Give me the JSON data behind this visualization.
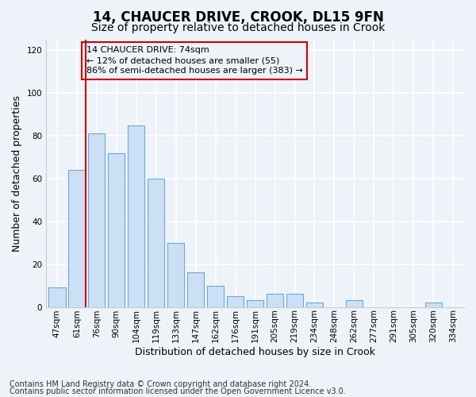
{
  "title1": "14, CHAUCER DRIVE, CROOK, DL15 9FN",
  "title2": "Size of property relative to detached houses in Crook",
  "xlabel": "Distribution of detached houses by size in Crook",
  "ylabel": "Number of detached properties",
  "footnote1": "Contains HM Land Registry data © Crown copyright and database right 2024.",
  "footnote2": "Contains public sector information licensed under the Open Government Licence v3.0.",
  "bar_labels": [
    "47sqm",
    "61sqm",
    "76sqm",
    "90sqm",
    "104sqm",
    "119sqm",
    "133sqm",
    "147sqm",
    "162sqm",
    "176sqm",
    "191sqm",
    "205sqm",
    "219sqm",
    "234sqm",
    "248sqm",
    "262sqm",
    "277sqm",
    "291sqm",
    "305sqm",
    "320sqm",
    "334sqm"
  ],
  "bar_values": [
    9,
    64,
    81,
    72,
    85,
    60,
    30,
    16,
    10,
    5,
    3,
    6,
    6,
    2,
    0,
    3,
    0,
    0,
    0,
    2,
    0
  ],
  "bar_color": "#cce0f5",
  "bar_edge_color": "#6aaad4",
  "vline_color": "#cc0000",
  "box_edge_color": "#cc0000",
  "ylim": [
    0,
    125
  ],
  "yticks": [
    0,
    20,
    40,
    60,
    80,
    100,
    120
  ],
  "background_color": "#eef2f9",
  "grid_color": "#ffffff",
  "title1_fontsize": 12,
  "title2_fontsize": 10,
  "axis_label_fontsize": 9,
  "tick_fontsize": 7.5,
  "footnote_fontsize": 7,
  "annotation_fontsize": 8,
  "annotation_line1": "14 CHAUCER DRIVE: 74sqm",
  "annotation_line2": "← 12% of detached houses are smaller (55)",
  "annotation_line3": "86% of semi-detached houses are larger (383) →"
}
